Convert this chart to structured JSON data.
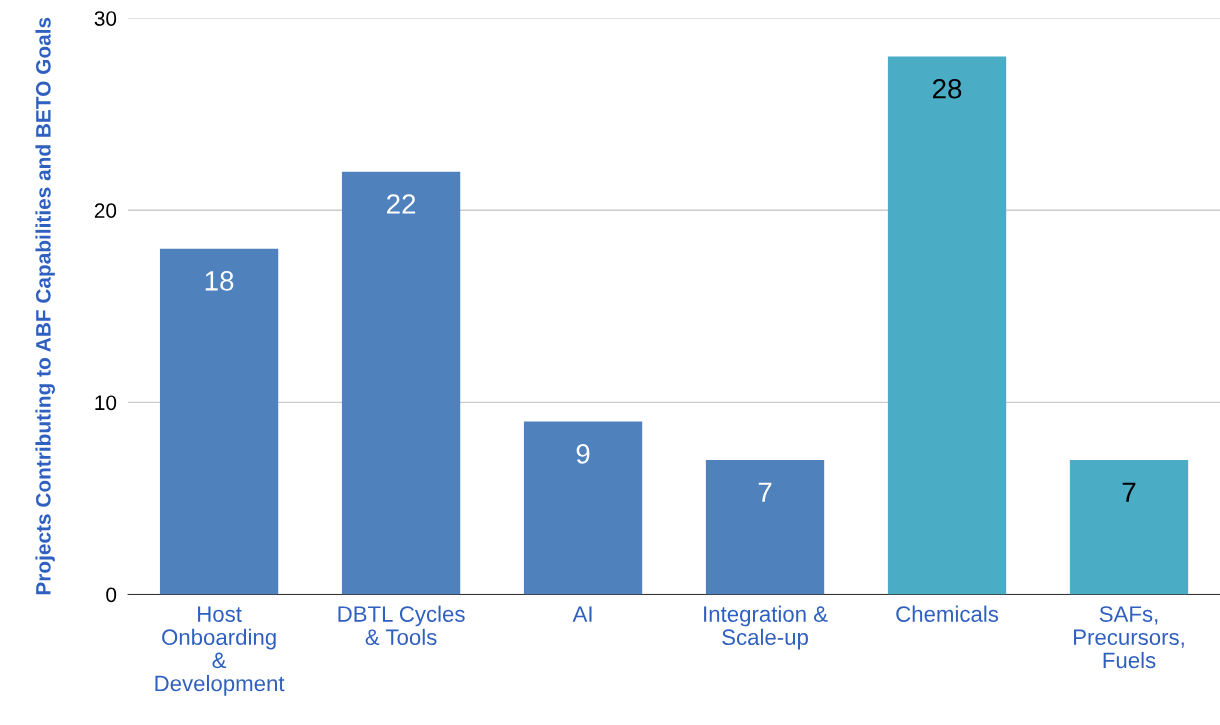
{
  "chart_data": {
    "type": "bar",
    "ylabel": "Projects Contributing to ABF Capabilities and BETO Goals",
    "categories": [
      "Host\nOnboarding\n&\nDevelopment",
      "DBTL Cycles\n& Tools",
      "AI",
      "Integration &\nScale-up",
      "Chemicals",
      "SAFs,\nPrecursors,\nFuels"
    ],
    "values": [
      18,
      22,
      9,
      7,
      28,
      7
    ],
    "colors": [
      "#4f81bd",
      "#4f81bd",
      "#4f81bd",
      "#4f81bd",
      "#4bacc6",
      "#4bacc6"
    ],
    "ylim": [
      0,
      30
    ],
    "yticks": [
      0,
      10,
      20,
      30
    ],
    "grid": "y",
    "data_labels": true
  }
}
